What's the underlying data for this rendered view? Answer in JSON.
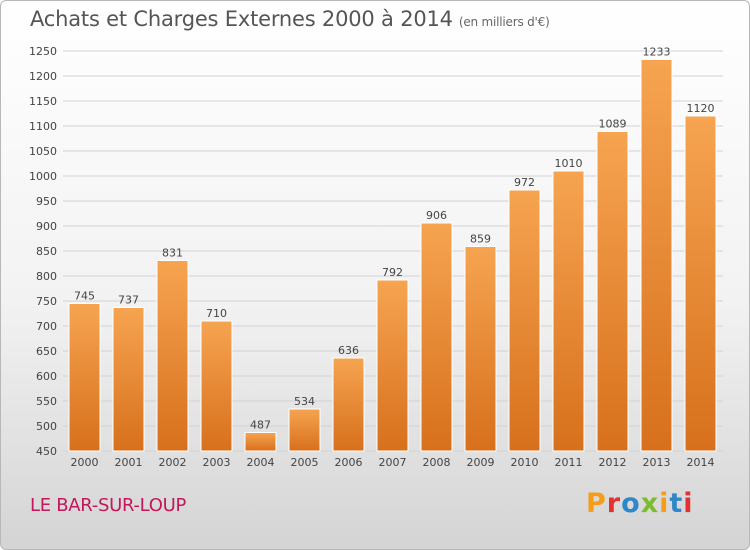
{
  "header": {
    "title": "Achats et Charges Externes 2000 à 2014",
    "subtitle": "(en milliers d'€)"
  },
  "footer": {
    "location": "LE BAR-SUR-LOUP",
    "brand": "Proxiti",
    "brand_colors": [
      "#f59d1a",
      "#e2312f",
      "#2e87c8",
      "#7cbb2f",
      "#f59d1a",
      "#2e87c8",
      "#e2312f"
    ]
  },
  "colors": {
    "bar_top": "#f6a451",
    "bar_bottom": "#d7701c",
    "bar_edge": "#ffffff",
    "grid": "#d2d2d2",
    "axis_text": "#444444",
    "location_text": "#c2185b"
  },
  "chart_data": {
    "type": "bar",
    "categories": [
      "2000",
      "2001",
      "2002",
      "2003",
      "2004",
      "2005",
      "2006",
      "2007",
      "2008",
      "2009",
      "2010",
      "2011",
      "2012",
      "2013",
      "2014"
    ],
    "values": [
      745,
      737,
      831,
      710,
      487,
      534,
      636,
      792,
      906,
      859,
      972,
      1010,
      1089,
      1233,
      1120
    ],
    "title": "Achats et Charges Externes 2000 à 2014",
    "subtitle": "(en milliers d'€)",
    "ylim": [
      450,
      1250
    ],
    "yticks": [
      450,
      500,
      550,
      600,
      650,
      700,
      750,
      800,
      850,
      900,
      950,
      1000,
      1050,
      1100,
      1150,
      1200,
      1250
    ],
    "grid": true,
    "data_labels": true
  }
}
